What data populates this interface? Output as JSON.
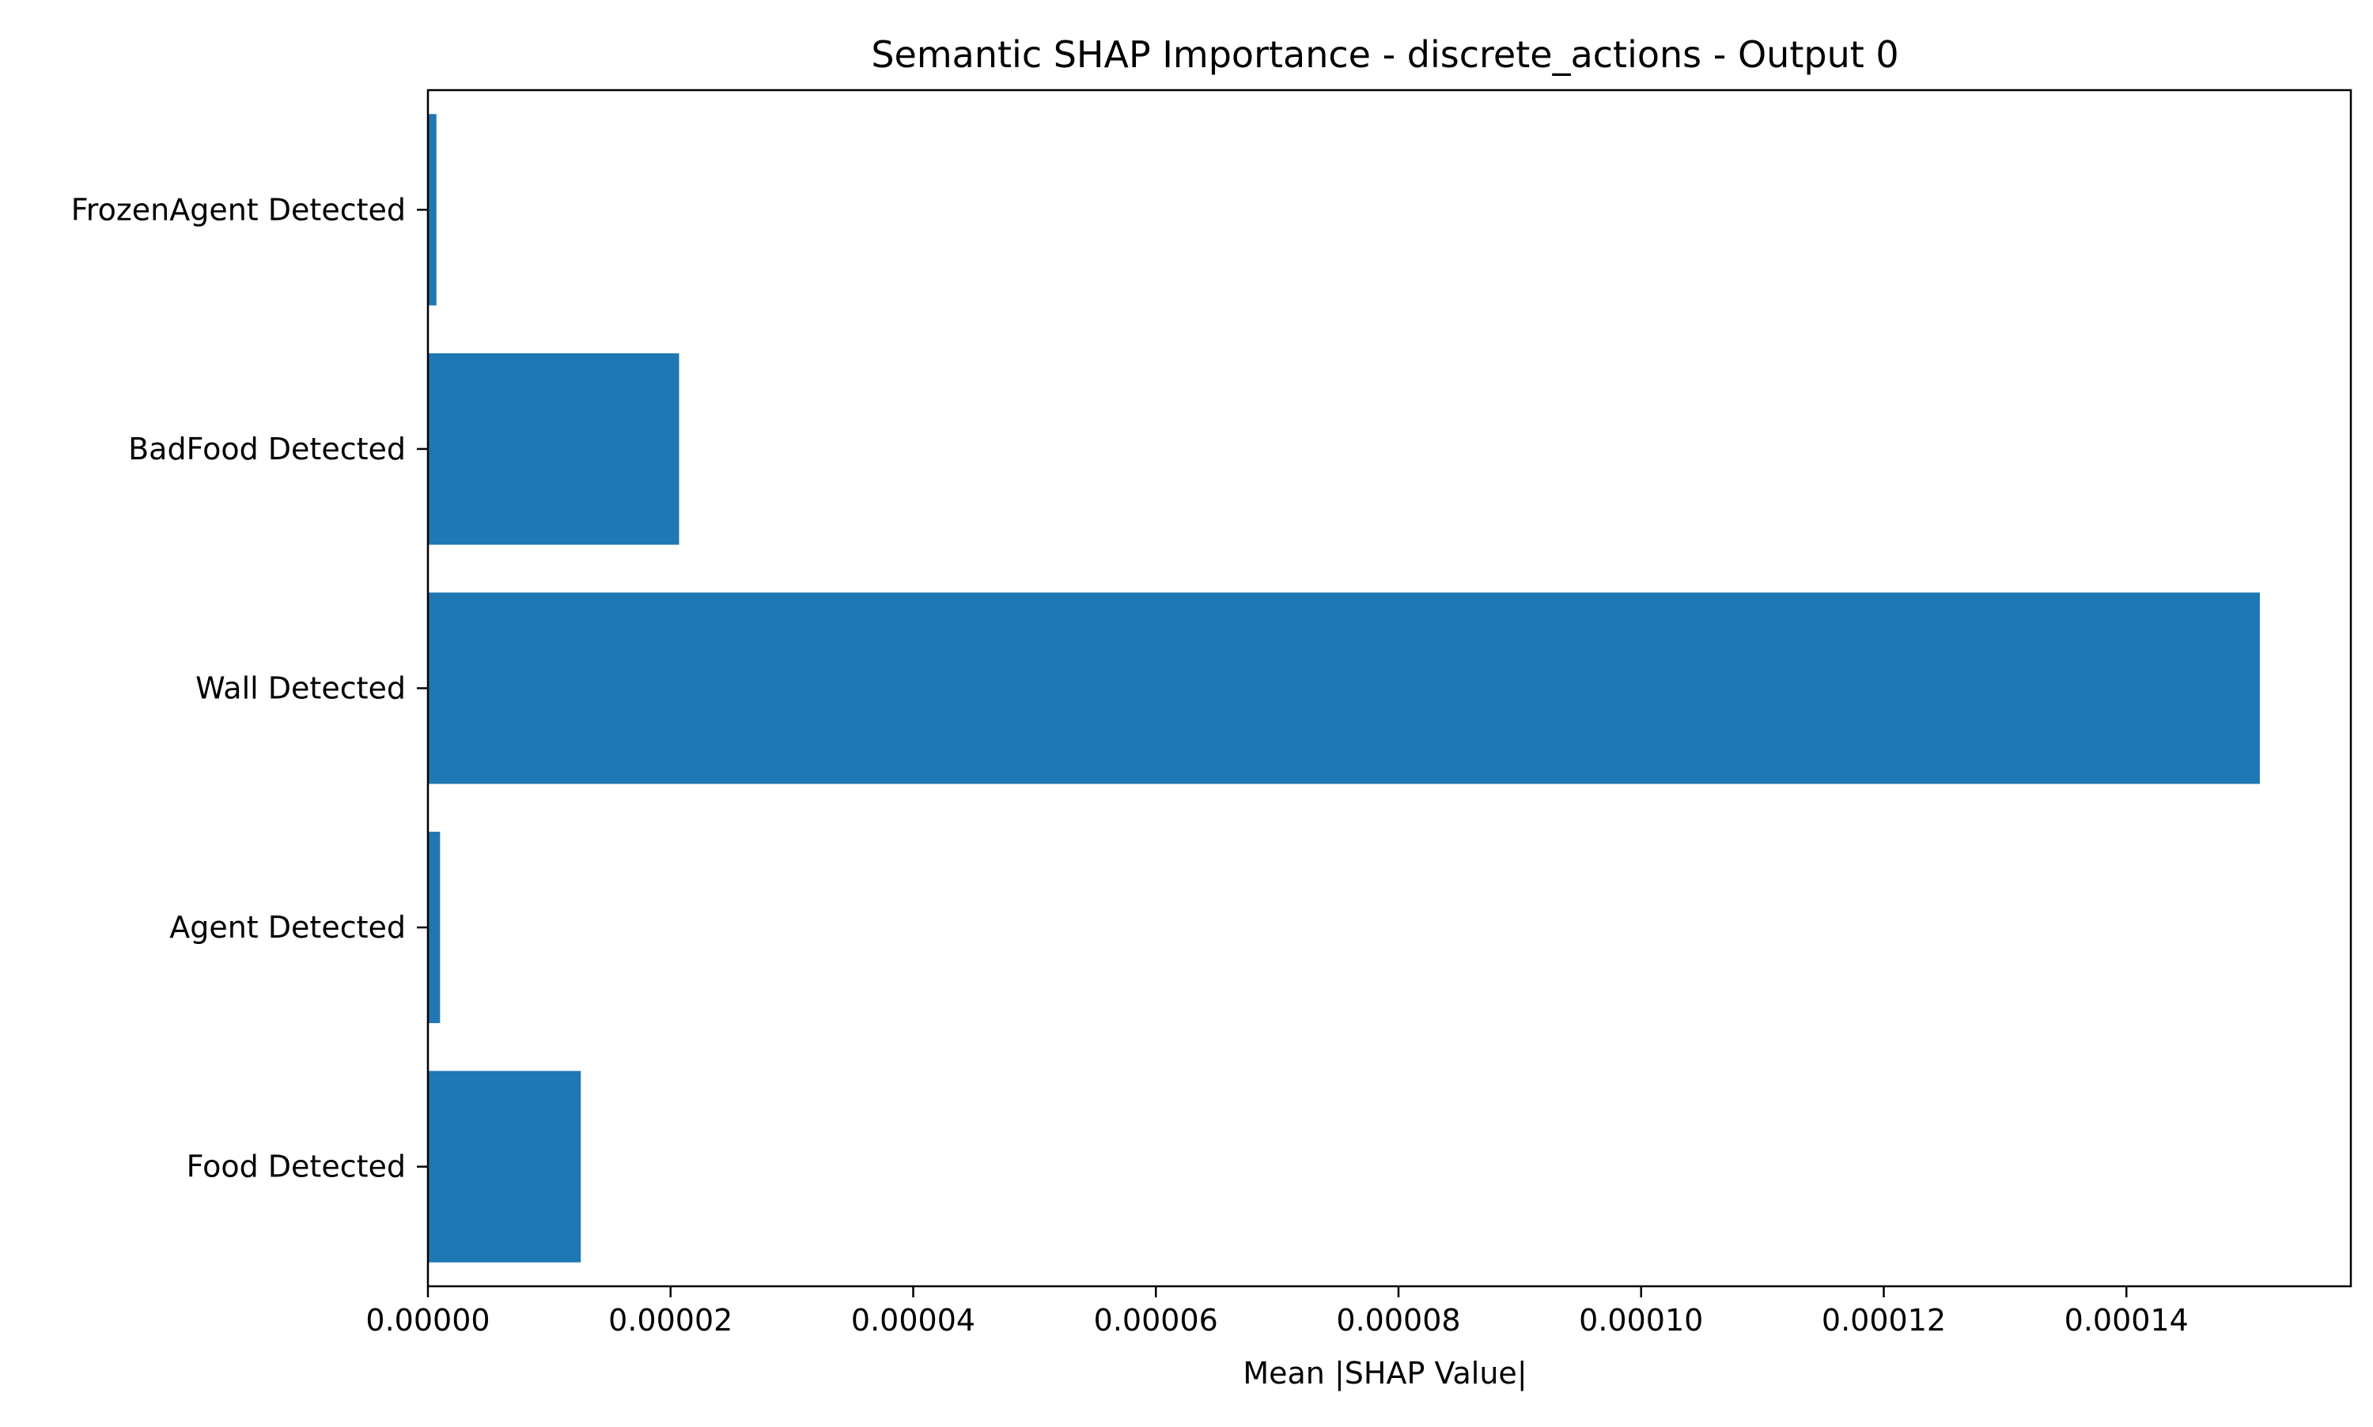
{
  "chart_data": {
    "type": "bar",
    "orientation": "horizontal",
    "title": "Semantic SHAP Importance - discrete_actions - Output 0",
    "xlabel": "Mean |SHAP Value|",
    "ylabel": "",
    "categories": [
      "FrozenAgent Detected",
      "BadFood Detected",
      "Wall Detected",
      "Agent Detected",
      "Food Detected"
    ],
    "values": [
      7e-07,
      2.07e-05,
      0.000151,
      1e-06,
      1.26e-05
    ],
    "xlim": [
      0,
      0.0001585
    ],
    "xticks": [
      0,
      2e-05,
      4e-05,
      6e-05,
      8e-05,
      0.0001,
      0.00012,
      0.00014
    ],
    "xtick_labels": [
      "0.00000",
      "0.00002",
      "0.00004",
      "0.00006",
      "0.00008",
      "0.00010",
      "0.00012",
      "0.00014"
    ],
    "grid": false,
    "bar_color": "#1f77b4"
  }
}
